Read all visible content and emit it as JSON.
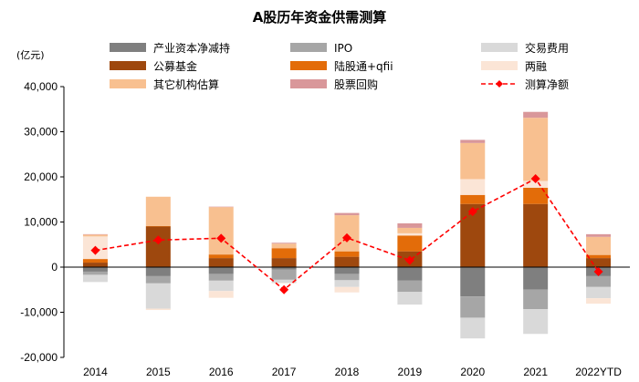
{
  "chart_data": {
    "type": "bar",
    "title": "A股历年资金供需测算",
    "unit_label": "(亿元)",
    "categories": [
      "2014",
      "2015",
      "2016",
      "2017",
      "2018",
      "2019",
      "2020",
      "2021",
      "2022YTD"
    ],
    "ylim": [
      -20000,
      40000
    ],
    "yticks": [
      {
        "value": 40000,
        "label": "40,000"
      },
      {
        "value": 30000,
        "label": "30,000"
      },
      {
        "value": 20000,
        "label": "20,000"
      },
      {
        "value": 10000,
        "label": "10,000"
      },
      {
        "value": 0,
        "label": "0"
      },
      {
        "value": -10000,
        "label": "-10,000"
      },
      {
        "value": -20000,
        "label": "-20,000"
      }
    ],
    "stacked": true,
    "grid": false,
    "legend_position": "top",
    "series": [
      {
        "name": "产业资本净减持",
        "color": "#7f7f7f",
        "values": [
          -1000,
          -2000,
          -1500,
          -500,
          -1500,
          -3000,
          -6500,
          -5000,
          -2000
        ]
      },
      {
        "name": "IPO",
        "color": "#a6a6a6",
        "values": [
          -700,
          -1600,
          -1500,
          -2300,
          -1400,
          -2500,
          -4700,
          -4300,
          -2400
        ]
      },
      {
        "name": "交易费用",
        "color": "#d9d9d9",
        "values": [
          -1600,
          -5600,
          -2300,
          -700,
          -1500,
          -2800,
          -4600,
          -5500,
          -2500
        ]
      },
      {
        "name": "公募基金",
        "color": "#9e480e",
        "values": [
          1000,
          9000,
          2000,
          2000,
          2300,
          3500,
          14000,
          14000,
          2000
        ]
      },
      {
        "name": "陆股通+qfii",
        "color": "#e36c09",
        "values": [
          800,
          100,
          800,
          2200,
          1200,
          3500,
          2000,
          3600,
          700
        ]
      },
      {
        "name": "两融",
        "color": "#fbe5d6",
        "values": [
          5000,
          -300,
          -1500,
          -100,
          -1200,
          500,
          3500,
          1500,
          -1200
        ]
      },
      {
        "name": "其它机构估算",
        "color": "#f8c090",
        "values": [
          400,
          6500,
          10500,
          1000,
          8000,
          1200,
          8000,
          14000,
          4000
        ]
      },
      {
        "name": "股票回购",
        "color": "#d9979a",
        "values": [
          100,
          0,
          100,
          200,
          500,
          1000,
          700,
          1300,
          600
        ]
      }
    ],
    "line": {
      "name": "测算净额",
      "color": "#ff0000",
      "values": [
        3700,
        6000,
        6400,
        -5000,
        6500,
        1500,
        12300,
        19600,
        -1000
      ]
    },
    "legend_rows": [
      [
        "产业资本净减持",
        "IPO",
        "交易费用"
      ],
      [
        "公募基金",
        "陆股通+qfii",
        "两融"
      ],
      [
        "其它机构估算",
        "股票回购",
        "测算净额"
      ]
    ]
  }
}
